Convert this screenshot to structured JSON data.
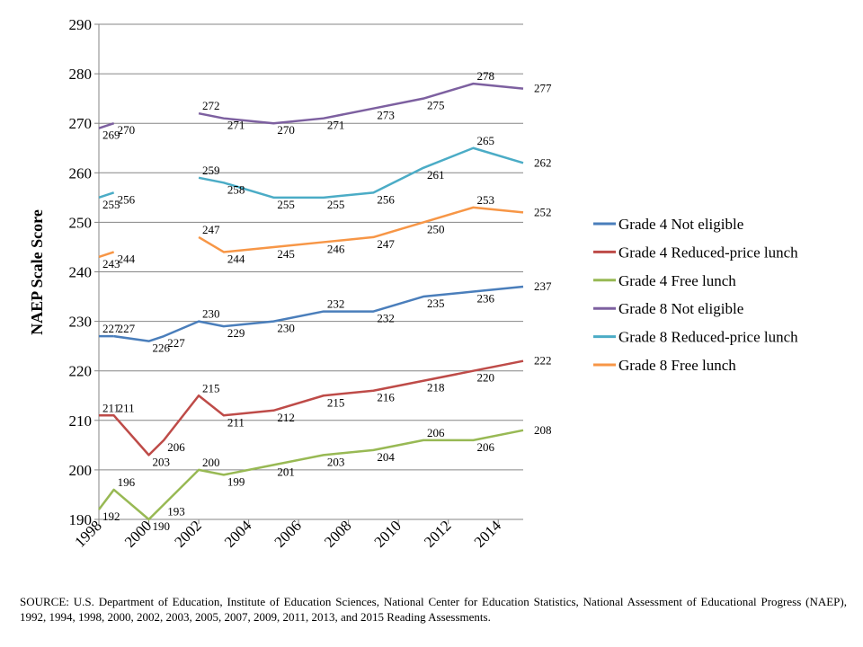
{
  "chart_data": {
    "type": "line",
    "title": "",
    "xlabel": "",
    "ylabel": "NAEP Scale Score",
    "xlim": [
      1998,
      2015
    ],
    "ylim": [
      190,
      290
    ],
    "yticks": [
      190,
      200,
      210,
      220,
      230,
      240,
      250,
      260,
      270,
      280,
      290
    ],
    "xticks": [
      1998,
      2000,
      2002,
      2004,
      2006,
      2008,
      2010,
      2012,
      2014
    ],
    "legend_position": "right",
    "series": [
      {
        "name": "Grade 4 Not eligible",
        "color": "#4A7EBB",
        "segments": [
          [
            {
              "x": 1998,
              "y": 227
            },
            {
              "x": 1998.6,
              "y": 227
            }
          ],
          [
            {
              "x": 1998.6,
              "y": 227
            },
            {
              "x": 2000,
              "y": 226
            },
            {
              "x": 2000.6,
              "y": 227
            },
            {
              "x": 2002,
              "y": 230
            },
            {
              "x": 2003,
              "y": 229
            },
            {
              "x": 2005,
              "y": 230
            },
            {
              "x": 2007,
              "y": 232
            },
            {
              "x": 2009,
              "y": 232
            },
            {
              "x": 2011,
              "y": 235
            },
            {
              "x": 2013,
              "y": 236
            },
            {
              "x": 2015,
              "y": 237
            }
          ]
        ],
        "labels": [
          {
            "x": 1998,
            "y": 227,
            "text": "227"
          },
          {
            "x": 1998.6,
            "y": 227,
            "text": "227"
          },
          {
            "x": 2000,
            "y": 226,
            "text": "226"
          },
          {
            "x": 2000.6,
            "y": 227,
            "text": "227"
          },
          {
            "x": 2002,
            "y": 230,
            "text": "230"
          },
          {
            "x": 2003,
            "y": 229,
            "text": "229"
          },
          {
            "x": 2005,
            "y": 230,
            "text": "230"
          },
          {
            "x": 2007,
            "y": 232,
            "text": "232"
          },
          {
            "x": 2009,
            "y": 232,
            "text": "232"
          },
          {
            "x": 2011,
            "y": 235,
            "text": "235"
          },
          {
            "x": 2013,
            "y": 236,
            "text": "236"
          },
          {
            "x": 2015,
            "y": 237,
            "text": "237"
          }
        ]
      },
      {
        "name": "Grade 4 Reduced-price lunch",
        "color": "#BE4B48",
        "segments": [
          [
            {
              "x": 1998,
              "y": 211
            },
            {
              "x": 1998.6,
              "y": 211
            },
            {
              "x": 2000,
              "y": 203
            },
            {
              "x": 2000.6,
              "y": 206
            },
            {
              "x": 2002,
              "y": 215
            },
            {
              "x": 2003,
              "y": 211
            },
            {
              "x": 2005,
              "y": 212
            },
            {
              "x": 2007,
              "y": 215
            },
            {
              "x": 2009,
              "y": 216
            },
            {
              "x": 2011,
              "y": 218
            },
            {
              "x": 2013,
              "y": 220
            },
            {
              "x": 2015,
              "y": 222
            }
          ]
        ],
        "labels": [
          {
            "x": 1998,
            "y": 211,
            "text": "211"
          },
          {
            "x": 1998.6,
            "y": 211,
            "text": "211"
          },
          {
            "x": 2000,
            "y": 203,
            "text": "203"
          },
          {
            "x": 2000.6,
            "y": 206,
            "text": "206"
          },
          {
            "x": 2002,
            "y": 215,
            "text": "215"
          },
          {
            "x": 2003,
            "y": 211,
            "text": "211"
          },
          {
            "x": 2005,
            "y": 212,
            "text": "212"
          },
          {
            "x": 2007,
            "y": 215,
            "text": "215"
          },
          {
            "x": 2009,
            "y": 216,
            "text": "216"
          },
          {
            "x": 2011,
            "y": 218,
            "text": "218"
          },
          {
            "x": 2013,
            "y": 220,
            "text": "220"
          },
          {
            "x": 2015,
            "y": 222,
            "text": "222"
          }
        ]
      },
      {
        "name": "Grade 4 Free lunch",
        "color": "#98B954",
        "segments": [
          [
            {
              "x": 1998,
              "y": 192
            },
            {
              "x": 1998.6,
              "y": 196
            },
            {
              "x": 2000,
              "y": 190
            },
            {
              "x": 2000.6,
              "y": 193
            },
            {
              "x": 2002,
              "y": 200
            },
            {
              "x": 2003,
              "y": 199
            },
            {
              "x": 2005,
              "y": 201
            },
            {
              "x": 2007,
              "y": 203
            },
            {
              "x": 2009,
              "y": 204
            },
            {
              "x": 2011,
              "y": 206
            },
            {
              "x": 2013,
              "y": 206
            },
            {
              "x": 2015,
              "y": 208
            }
          ]
        ],
        "labels": [
          {
            "x": 1998,
            "y": 192,
            "text": "192"
          },
          {
            "x": 1998.6,
            "y": 196,
            "text": "196"
          },
          {
            "x": 2000,
            "y": 190,
            "text": "190"
          },
          {
            "x": 2000.6,
            "y": 193,
            "text": "193"
          },
          {
            "x": 2002,
            "y": 200,
            "text": "200"
          },
          {
            "x": 2003,
            "y": 199,
            "text": "199"
          },
          {
            "x": 2005,
            "y": 201,
            "text": "201"
          },
          {
            "x": 2007,
            "y": 203,
            "text": "203"
          },
          {
            "x": 2009,
            "y": 204,
            "text": "204"
          },
          {
            "x": 2011,
            "y": 206,
            "text": "206"
          },
          {
            "x": 2013,
            "y": 206,
            "text": "206"
          },
          {
            "x": 2015,
            "y": 208,
            "text": "208"
          }
        ]
      },
      {
        "name": "Grade 8 Not eligible",
        "color": "#7D60A0",
        "segments": [
          [
            {
              "x": 1998,
              "y": 269
            },
            {
              "x": 1998.6,
              "y": 270
            }
          ],
          [
            {
              "x": 2002,
              "y": 272
            },
            {
              "x": 2003,
              "y": 271
            },
            {
              "x": 2005,
              "y": 270
            },
            {
              "x": 2007,
              "y": 271
            },
            {
              "x": 2009,
              "y": 273
            },
            {
              "x": 2011,
              "y": 275
            },
            {
              "x": 2013,
              "y": 278
            },
            {
              "x": 2015,
              "y": 277
            }
          ]
        ],
        "labels": [
          {
            "x": 1998,
            "y": 269,
            "text": "269"
          },
          {
            "x": 1998.6,
            "y": 270,
            "text": "270"
          },
          {
            "x": 2002,
            "y": 272,
            "text": "272"
          },
          {
            "x": 2003,
            "y": 271,
            "text": "271"
          },
          {
            "x": 2005,
            "y": 270,
            "text": "270"
          },
          {
            "x": 2007,
            "y": 271,
            "text": "271"
          },
          {
            "x": 2009,
            "y": 273,
            "text": "273"
          },
          {
            "x": 2011,
            "y": 275,
            "text": "275"
          },
          {
            "x": 2013,
            "y": 278,
            "text": "278"
          },
          {
            "x": 2015,
            "y": 277,
            "text": "277"
          }
        ]
      },
      {
        "name": "Grade 8 Reduced-price lunch",
        "color": "#4BACC6",
        "segments": [
          [
            {
              "x": 1998,
              "y": 255
            },
            {
              "x": 1998.6,
              "y": 256
            }
          ],
          [
            {
              "x": 2002,
              "y": 259
            },
            {
              "x": 2003,
              "y": 258
            },
            {
              "x": 2005,
              "y": 255
            },
            {
              "x": 2007,
              "y": 255
            },
            {
              "x": 2009,
              "y": 256
            },
            {
              "x": 2011,
              "y": 261
            },
            {
              "x": 2013,
              "y": 265
            },
            {
              "x": 2015,
              "y": 262
            }
          ]
        ],
        "labels": [
          {
            "x": 1998,
            "y": 255,
            "text": "255"
          },
          {
            "x": 1998.6,
            "y": 256,
            "text": "256"
          },
          {
            "x": 2002,
            "y": 259,
            "text": "259"
          },
          {
            "x": 2003,
            "y": 258,
            "text": "258"
          },
          {
            "x": 2005,
            "y": 255,
            "text": "255"
          },
          {
            "x": 2007,
            "y": 255,
            "text": "255"
          },
          {
            "x": 2009,
            "y": 256,
            "text": "256"
          },
          {
            "x": 2011,
            "y": 261,
            "text": "261"
          },
          {
            "x": 2013,
            "y": 265,
            "text": "265"
          },
          {
            "x": 2015,
            "y": 262,
            "text": "262"
          }
        ]
      },
      {
        "name": "Grade 8 Free lunch",
        "color": "#F79646",
        "segments": [
          [
            {
              "x": 1998,
              "y": 243
            },
            {
              "x": 1998.6,
              "y": 244
            }
          ],
          [
            {
              "x": 2002,
              "y": 247
            },
            {
              "x": 2003,
              "y": 244
            },
            {
              "x": 2005,
              "y": 245
            },
            {
              "x": 2007,
              "y": 246
            },
            {
              "x": 2009,
              "y": 247
            },
            {
              "x": 2011,
              "y": 250
            },
            {
              "x": 2013,
              "y": 253
            },
            {
              "x": 2015,
              "y": 252
            }
          ]
        ],
        "labels": [
          {
            "x": 1998,
            "y": 243,
            "text": "243"
          },
          {
            "x": 1998.6,
            "y": 244,
            "text": "244"
          },
          {
            "x": 2002,
            "y": 247,
            "text": "247"
          },
          {
            "x": 2003,
            "y": 244,
            "text": "244"
          },
          {
            "x": 2005,
            "y": 245,
            "text": "245"
          },
          {
            "x": 2007,
            "y": 246,
            "text": "246"
          },
          {
            "x": 2009,
            "y": 247,
            "text": "247"
          },
          {
            "x": 2011,
            "y": 250,
            "text": "250"
          },
          {
            "x": 2013,
            "y": 253,
            "text": "253"
          },
          {
            "x": 2015,
            "y": 252,
            "text": "252"
          }
        ]
      }
    ]
  },
  "source_note": "SOURCE: U.S. Department of Education, Institute of Education Sciences, National Center for Education Statistics, National Assessment of Educational Progress (NAEP), 1992, 1994, 1998, 2000, 2002, 2003, 2005, 2007, 2009, 2011, 2013, and 2015 Reading Assessments."
}
